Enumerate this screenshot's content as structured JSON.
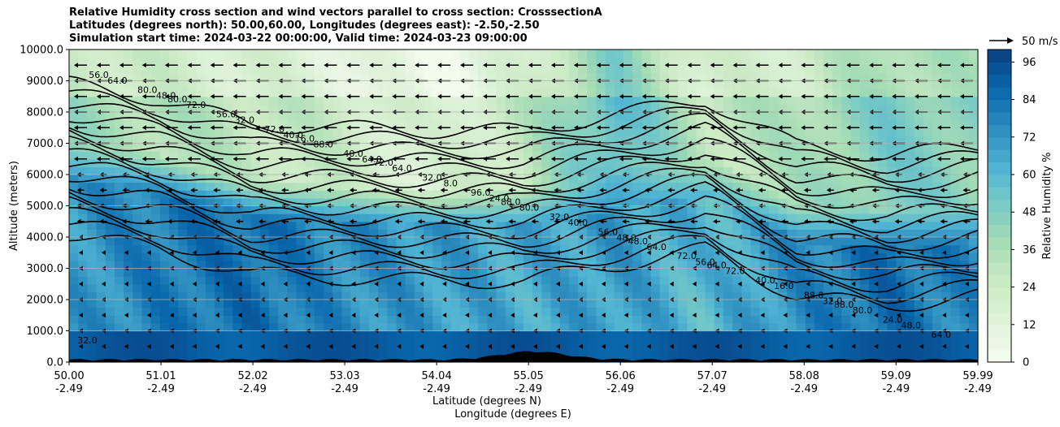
{
  "chart_data": {
    "type": "heatmap",
    "title": [
      "Relative Humidity cross section and wind vectors parallel to cross section: CrosssectionA",
      "Latitudes (degrees north): 50.00,60.00, Longitudes (degrees east): -2.50,-2.50",
      "Simulation start time: 2024-03-22 00:00:00, Valid time: 2024-03-23 09:00:00"
    ],
    "xlabel": "Latitude (degrees N)",
    "xlabel2": "Longitude (degrees E)",
    "ylabel": "Altitude (meters)",
    "ylim": [
      0,
      10000
    ],
    "yticks": [
      "0.0",
      "1000.0",
      "2000.0",
      "3000.0",
      "4000.0",
      "5000.0",
      "6000.0",
      "7000.0",
      "8000.0",
      "9000.0",
      "10000.0"
    ],
    "xticks_lat": [
      "50.00",
      "51.01",
      "52.02",
      "53.03",
      "54.04",
      "55.05",
      "56.06",
      "57.07",
      "58.08",
      "59.09",
      "59.99"
    ],
    "xticks_lon": [
      "-2.49",
      "-2.49",
      "-2.49",
      "-2.49",
      "-2.49",
      "-2.49",
      "-2.49",
      "-2.49",
      "-2.49",
      "-2.49",
      "-2.49"
    ],
    "colorbar": {
      "label": "Relative Humidity %",
      "ticks": [
        "0",
        "12",
        "24",
        "36",
        "48",
        "60",
        "72",
        "84",
        "96"
      ],
      "range": [
        0,
        100
      ],
      "colormap": "GnBu"
    },
    "quiver_key": "50 m/s",
    "grid": "horizontal",
    "contour_labels": [
      "32.0",
      "48.0",
      "40.0",
      "32.0",
      "24.0",
      "48.0",
      "56.0",
      "64.0",
      "48.0",
      "40.0",
      "32.0",
      "16.0",
      "8.0",
      "64.0",
      "64.0",
      "88.0",
      "80.0",
      "80.0",
      "72.0",
      "72.0",
      "64.0",
      "64.0",
      "56.0",
      "72.0",
      "88.0",
      "96.0",
      "80.0",
      "72.0",
      "40.0",
      "24.0",
      "32.0",
      "56.0",
      "40.0",
      "32.0",
      "56.0",
      "48.0",
      "16.0",
      "88.0",
      "88.0",
      "80.0",
      "64.0",
      "72.0"
    ],
    "humidity_profile": {
      "x": [
        50.0,
        51.0,
        52.0,
        53.0,
        54.0,
        55.0,
        56.0,
        57.0,
        58.0,
        59.0,
        60.0
      ],
      "upper_dry_base_m": [
        6500,
        6000,
        5200,
        5100,
        5000,
        5000,
        5500,
        6000,
        4500,
        4200,
        4500
      ],
      "rh_moist_layer": [
        70,
        80,
        85,
        75,
        70,
        65,
        70,
        60,
        75,
        85,
        75
      ],
      "rh_upper": [
        40,
        35,
        30,
        25,
        15,
        30,
        60,
        30,
        35,
        50,
        45
      ]
    }
  }
}
